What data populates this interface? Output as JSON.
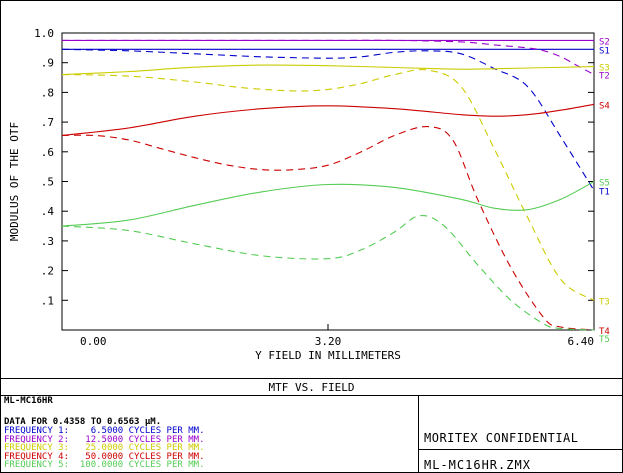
{
  "chart_data": {
    "type": "line",
    "xlabel": "Y FIELD IN MILLIMETERS",
    "ylabel": "MODULUS OF THE OTF",
    "x_ticks": [
      "0.00",
      "3.20",
      "6.40"
    ],
    "xlim": [
      0,
      6.4
    ],
    "y_ticks": [
      "1.0",
      ".9",
      ".8",
      ".7",
      ".6",
      ".5",
      ".4",
      ".3",
      ".2",
      ".1"
    ],
    "ylim": [
      0,
      1.0
    ],
    "grid": false,
    "series": [
      {
        "name": "S1",
        "color": "#0000cc",
        "dashed": false,
        "label": "S1",
        "x": [
          0,
          6.4
        ],
        "y": [
          0.945,
          0.945
        ]
      },
      {
        "name": "T1",
        "color": "#0000cc",
        "dashed": true,
        "label": "T1",
        "x": [
          0,
          0.8,
          1.6,
          2.4,
          3.2,
          3.6,
          4.0,
          4.4,
          4.8,
          5.2,
          5.6,
          6.0,
          6.4
        ],
        "y": [
          0.945,
          0.94,
          0.93,
          0.92,
          0.915,
          0.92,
          0.935,
          0.94,
          0.93,
          0.88,
          0.82,
          0.65,
          0.47
        ]
      },
      {
        "name": "S2",
        "color": "#9900cc",
        "dashed": false,
        "label": "S2",
        "x": [
          0,
          6.4
        ],
        "y": [
          0.975,
          0.975
        ]
      },
      {
        "name": "T2",
        "color": "#9900cc",
        "dashed": true,
        "label": "T2",
        "x": [
          0,
          1.6,
          3.2,
          4.0,
          4.8,
          5.2,
          5.6,
          5.8,
          6.0,
          6.2,
          6.4
        ],
        "y": [
          0.975,
          0.975,
          0.975,
          0.975,
          0.97,
          0.96,
          0.95,
          0.94,
          0.92,
          0.89,
          0.86
        ]
      },
      {
        "name": "S3",
        "color": "#cccc00",
        "dashed": false,
        "label": "S3",
        "x": [
          0,
          0.8,
          1.6,
          2.4,
          3.2,
          4.0,
          4.8,
          5.6,
          6.4
        ],
        "y": [
          0.86,
          0.87,
          0.885,
          0.892,
          0.89,
          0.884,
          0.878,
          0.882,
          0.887
        ]
      },
      {
        "name": "T3",
        "color": "#cccc00",
        "dashed": true,
        "label": "T3",
        "x": [
          0,
          0.8,
          1.6,
          2.2,
          2.8,
          3.2,
          3.6,
          4.0,
          4.4,
          4.8,
          5.2,
          5.6,
          6.0,
          6.4
        ],
        "y": [
          0.86,
          0.855,
          0.835,
          0.815,
          0.805,
          0.81,
          0.83,
          0.86,
          0.875,
          0.82,
          0.61,
          0.38,
          0.17,
          0.1
        ]
      },
      {
        "name": "S4",
        "color": "#cc0000",
        "dashed": false,
        "label": "S4",
        "x": [
          0,
          0.8,
          1.6,
          2.4,
          3.2,
          4.0,
          4.8,
          5.2,
          5.6,
          6.0,
          6.4
        ],
        "y": [
          0.655,
          0.68,
          0.72,
          0.745,
          0.755,
          0.745,
          0.725,
          0.72,
          0.725,
          0.74,
          0.76
        ]
      },
      {
        "name": "T4",
        "color": "#cc0000",
        "dashed": true,
        "label": "T4",
        "x": [
          0,
          0.4,
          0.8,
          1.2,
          1.6,
          2.0,
          2.4,
          2.8,
          3.2,
          3.6,
          4.0,
          4.4,
          4.7,
          5.0,
          5.4,
          5.8,
          6.0,
          6.4
        ],
        "y": [
          0.655,
          0.655,
          0.64,
          0.61,
          0.58,
          0.555,
          0.54,
          0.54,
          0.555,
          0.6,
          0.655,
          0.685,
          0.64,
          0.44,
          0.21,
          0.04,
          0.01,
          0.0
        ]
      },
      {
        "name": "S5",
        "color": "#55cc55",
        "dashed": false,
        "label": "S5",
        "x": [
          0,
          0.8,
          1.6,
          2.4,
          3.2,
          4.0,
          4.8,
          5.2,
          5.6,
          6.0,
          6.4
        ],
        "y": [
          0.35,
          0.37,
          0.42,
          0.465,
          0.49,
          0.48,
          0.44,
          0.41,
          0.405,
          0.44,
          0.5
        ]
      },
      {
        "name": "T5",
        "color": "#55cc55",
        "dashed": true,
        "label": "T5",
        "x": [
          0,
          0.8,
          1.6,
          2.4,
          3.2,
          3.6,
          4.0,
          4.3,
          4.6,
          5.0,
          5.4,
          5.8,
          6.0,
          6.4
        ],
        "y": [
          0.35,
          0.335,
          0.29,
          0.25,
          0.24,
          0.27,
          0.33,
          0.385,
          0.35,
          0.22,
          0.1,
          0.02,
          0.005,
          0.0
        ]
      }
    ]
  },
  "panel": {
    "title": "MTF VS. FIELD",
    "model": "ML-MC16HR",
    "data_line": "DATA FOR 0.4358 TO 0.6563 µM.",
    "frequencies": [
      {
        "text": "FREQUENCY 1:    6.5000 CYCLES PER MM.",
        "color": "#0000cc"
      },
      {
        "text": "FREQUENCY 2:   12.5000 CYCLES PER MM.",
        "color": "#9900cc"
      },
      {
        "text": "FREQUENCY 3:   25.0000 CYCLES PER MM.",
        "color": "#cccc00"
      },
      {
        "text": "FREQUENCY 4:   50.0000 CYCLES PER MM.",
        "color": "#cc0000"
      },
      {
        "text": "FREQUENCY 5:  100.0000 CYCLES PER MM.",
        "color": "#55cc55"
      }
    ],
    "confidential": "MORITEX CONFIDENTIAL",
    "filename": "ML-MC16HR.ZMX"
  }
}
